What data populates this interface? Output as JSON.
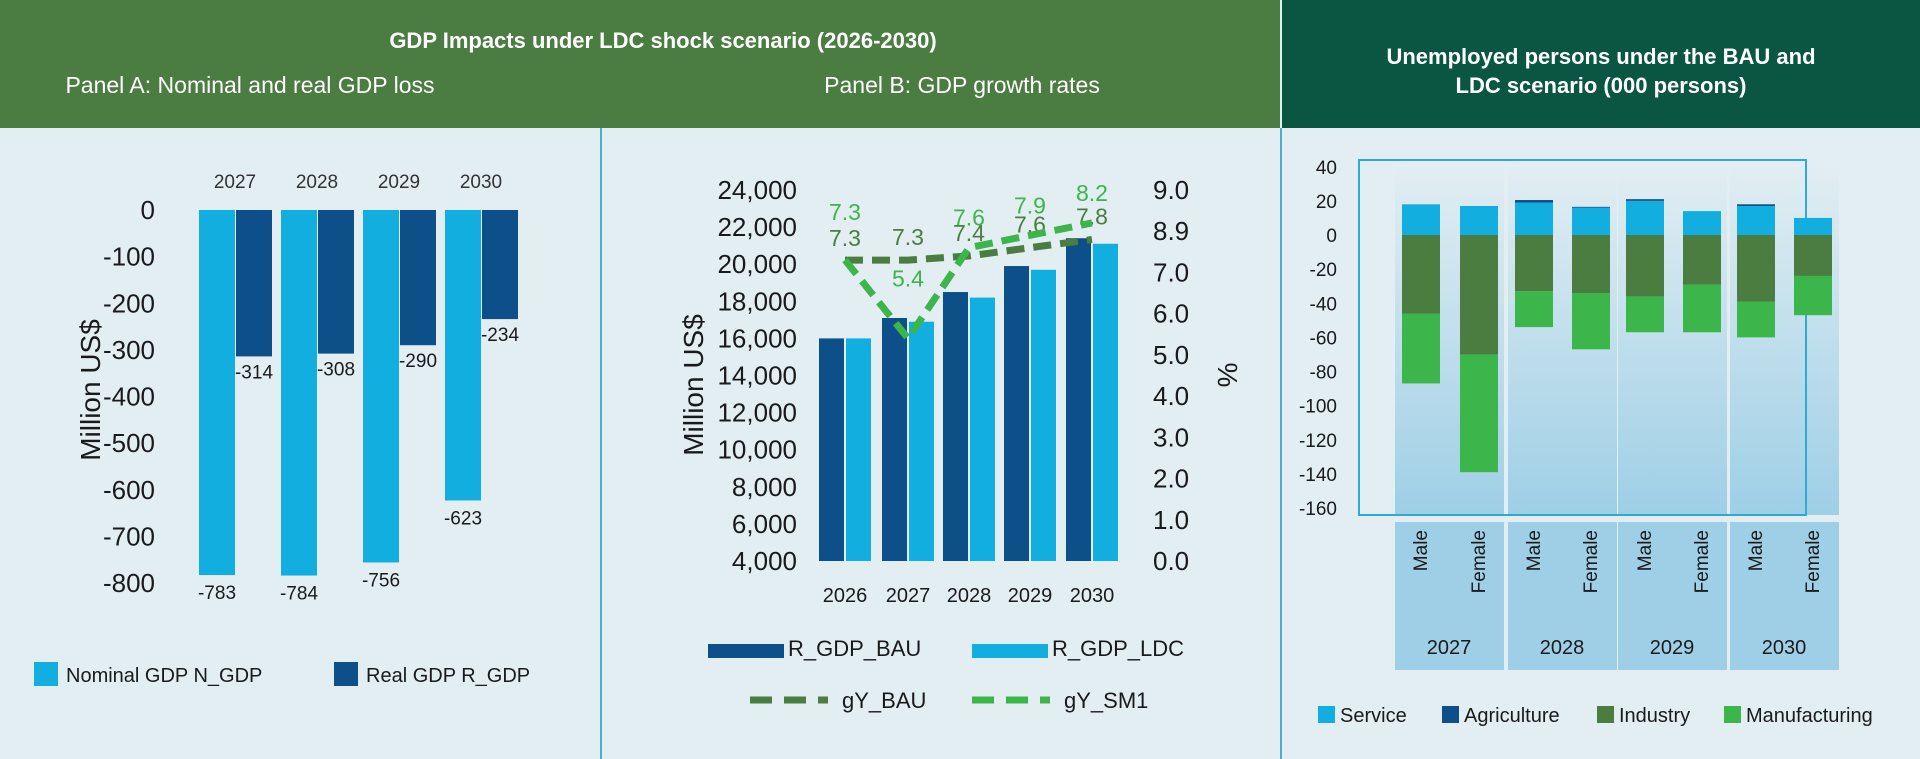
{
  "header": {
    "main_title": "GDP Impacts under LDC shock scenario (2026-2030)",
    "panel_a_title": "Panel A: Nominal and real GDP loss",
    "panel_b_title": "Panel B: GDP growth rates",
    "right_title_line1": "Unemployed persons under the BAU and",
    "right_title_line2": "LDC scenario (000 persons)"
  },
  "colors": {
    "header_green": "#4b7c41",
    "header_dark_green": "#0b5642",
    "background": "#e3eef3",
    "light_blue": "#12aedf",
    "dark_blue": "#0d5089",
    "dark_green": "#4a7d3f",
    "bright_green": "#3cb54a"
  },
  "chart_data": [
    {
      "type": "bar",
      "title": "Panel A: Nominal and real GDP loss",
      "ylabel": "Million US$",
      "ylim": [
        -800,
        0
      ],
      "yticks": [
        0,
        -100,
        -200,
        -300,
        -400,
        -500,
        -600,
        -700,
        -800
      ],
      "categories": [
        "2027",
        "2028",
        "2029",
        "2030"
      ],
      "series": [
        {
          "name": "Nominal GDP N_GDP",
          "color": "#12aedf",
          "values": [
            -783,
            -784,
            -756,
            -623
          ]
        },
        {
          "name": "Real GDP R_GDP",
          "color": "#0d5089",
          "values": [
            -314,
            -308,
            -290,
            -234
          ]
        }
      ],
      "legend": "bottom"
    },
    {
      "type": "bar",
      "title": "Panel B: GDP growth rates",
      "ylabel": "Million US$",
      "y2label": "%",
      "ylim": [
        4000,
        24000
      ],
      "yticks": [
        4000,
        6000,
        8000,
        10000,
        12000,
        14000,
        16000,
        18000,
        20000,
        22000,
        24000
      ],
      "y2lim": [
        0,
        9
      ],
      "y2ticks": [
        "0.0",
        "1.0",
        "2.0",
        "3.0",
        "4.0",
        "5.0",
        "6.0",
        "7.0",
        "8.9",
        "9.0"
      ],
      "categories": [
        "2026",
        "2027",
        "2028",
        "2029",
        "2030"
      ],
      "series": [
        {
          "name": "R_GDP_BAU",
          "kind": "bar",
          "color": "#0d5089",
          "values": [
            16000,
            17100,
            18500,
            19900,
            21400
          ]
        },
        {
          "name": "R_GDP_LDC",
          "kind": "bar",
          "color": "#12aedf",
          "values": [
            16000,
            16900,
            18200,
            19700,
            21100
          ]
        },
        {
          "name": "gY_BAU",
          "kind": "dashed-line",
          "color": "#4a7d3f",
          "values": [
            7.3,
            7.3,
            7.4,
            7.6,
            7.8
          ],
          "labels": [
            "7.3",
            "7.3",
            "7.4",
            "7.6",
            "7.8"
          ]
        },
        {
          "name": "gY_SM1",
          "kind": "dashed-line",
          "color": "#3cb54a",
          "values": [
            7.3,
            5.4,
            7.6,
            7.9,
            8.2
          ],
          "labels": [
            "7.3",
            "5.4",
            "7.6",
            "7.9",
            "8.2"
          ]
        }
      ],
      "legend": "bottom"
    },
    {
      "type": "bar",
      "stacked": true,
      "title": "Unemployed persons under the BAU and LDC scenario (000 persons)",
      "ylim": [
        -160,
        40
      ],
      "yticks": [
        40,
        20,
        0,
        -20,
        -40,
        -60,
        -80,
        -100,
        -120,
        -140,
        -160
      ],
      "groups": [
        "2027",
        "2028",
        "2029",
        "2030"
      ],
      "subcategories": [
        "Male",
        "Female"
      ],
      "series": [
        {
          "name": "Service",
          "color": "#12aedf",
          "values": [
            18,
            17,
            19,
            16,
            20,
            14,
            17,
            10
          ]
        },
        {
          "name": "Agriculture",
          "color": "#0d5089",
          "values": [
            0,
            0,
            1.5,
            0.5,
            1,
            0,
            1,
            0
          ]
        },
        {
          "name": "Industry",
          "color": "#4a7d3f",
          "values": [
            -46,
            -70,
            -33,
            -34,
            -36,
            -29,
            -39,
            -24
          ]
        },
        {
          "name": "Manufacturing",
          "color": "#3cb54a",
          "values": [
            -41,
            -69,
            -21,
            -33,
            -21,
            -28,
            -21,
            -23
          ]
        }
      ],
      "legend": "bottom"
    }
  ]
}
